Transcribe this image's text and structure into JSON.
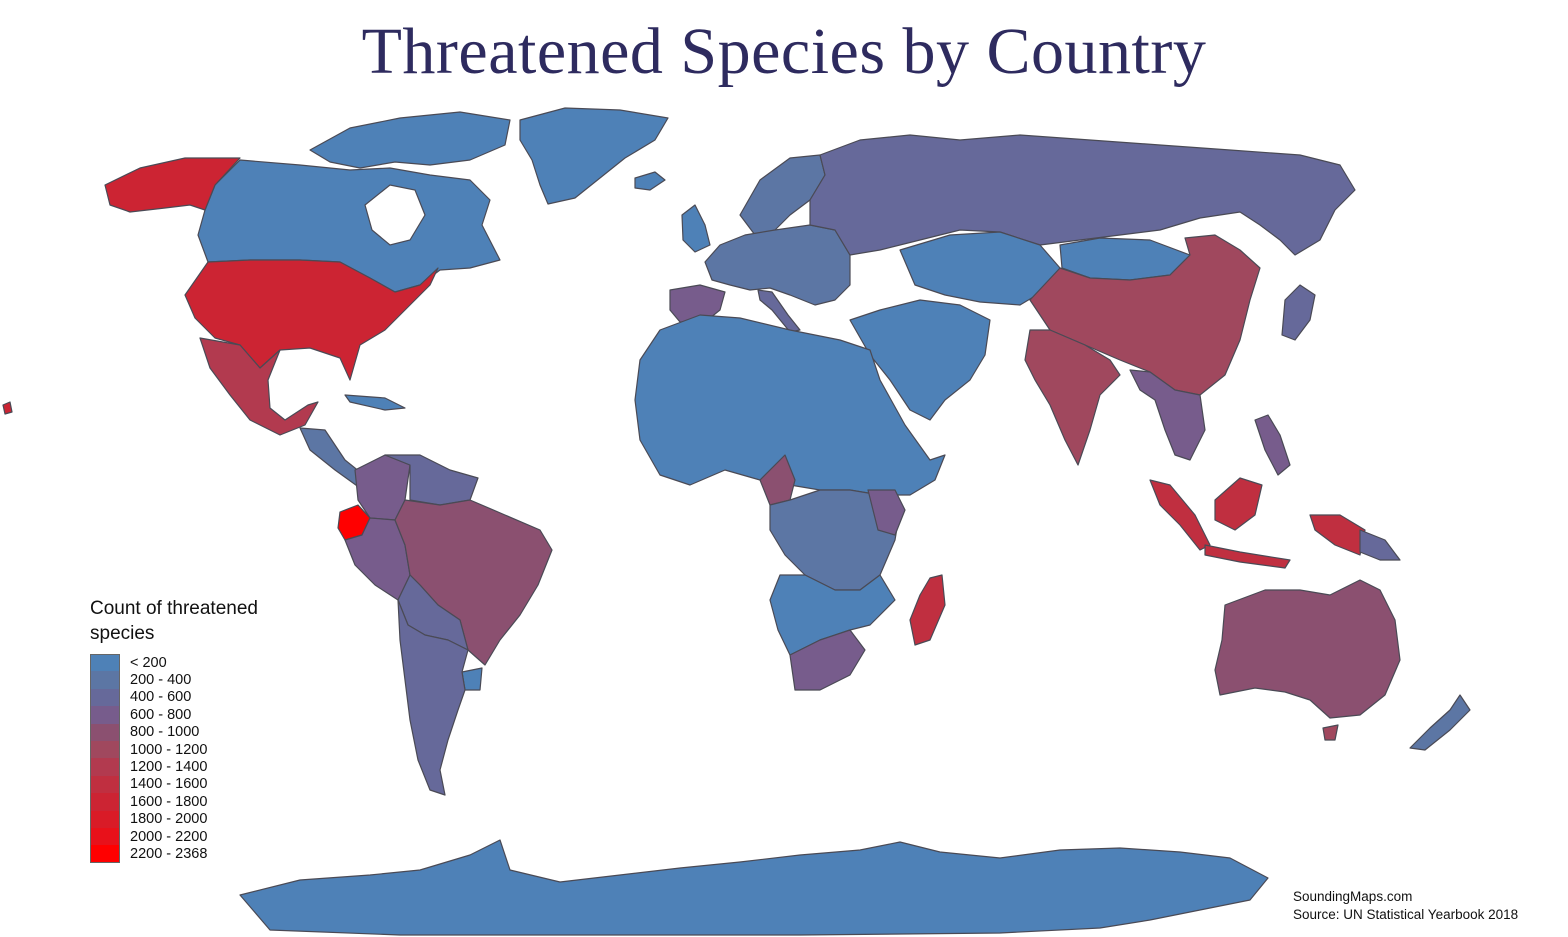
{
  "title": "Threatened Species by Country",
  "legend": {
    "title": "Count of threatened species",
    "classes": [
      {
        "label": "< 200",
        "color": "#4e81b7"
      },
      {
        "label": "200 - 400",
        "color": "#5c76a4"
      },
      {
        "label": "400 - 600",
        "color": "#66699a"
      },
      {
        "label": "600 - 800",
        "color": "#775c8c"
      },
      {
        "label": "800 - 1000",
        "color": "#8b5070"
      },
      {
        "label": "1000 - 1200",
        "color": "#a0485e"
      },
      {
        "label": "1200 - 1400",
        "color": "#b23a4f"
      },
      {
        "label": "1400 - 1600",
        "color": "#c02f40"
      },
      {
        "label": "1600 - 1800",
        "color": "#cc2433"
      },
      {
        "label": "1800 - 2000",
        "color": "#d91b27"
      },
      {
        "label": "2000 - 2200",
        "color": "#e8111a"
      },
      {
        "label": "2200 - 2368",
        "color": "#ff0000"
      }
    ]
  },
  "credits": {
    "site": "SoundingMaps.com",
    "source": "Source: UN Statistical Yearbook 2018"
  }
}
